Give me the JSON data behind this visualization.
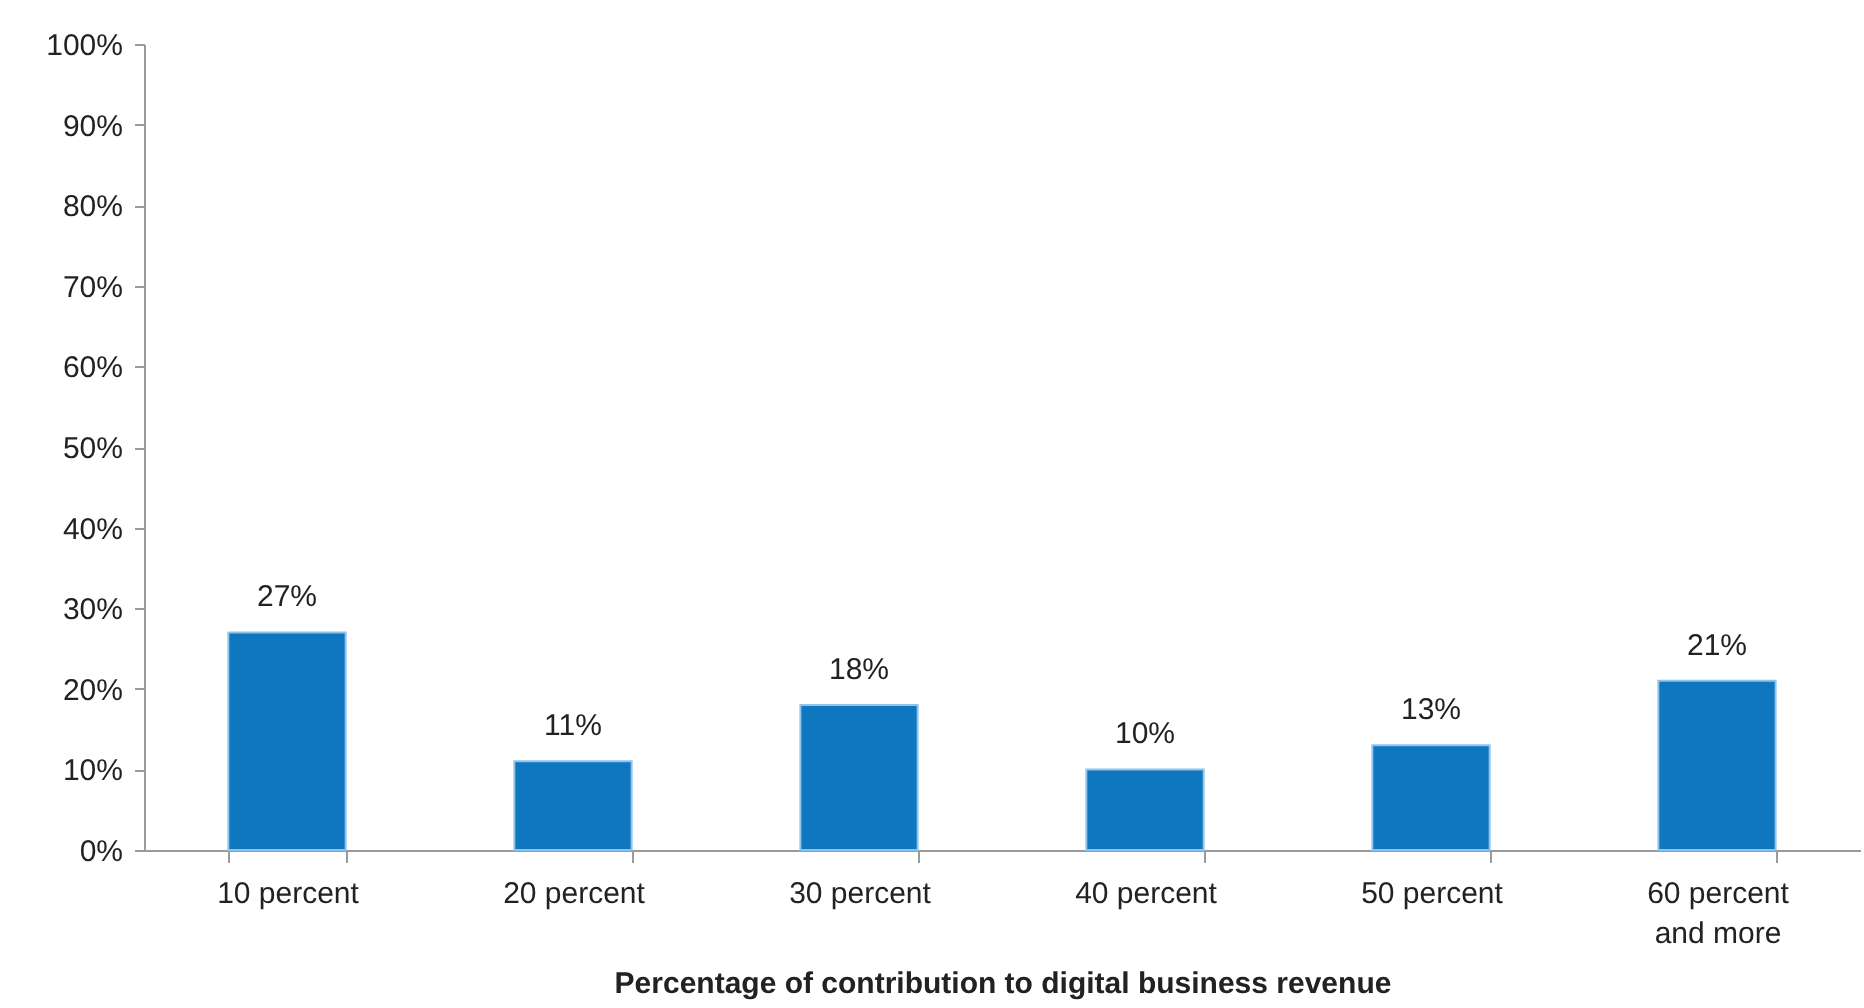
{
  "chart_data": {
    "type": "bar",
    "xlabel": "Percentage of contribution to digital business revenue",
    "categories": [
      "10 percent",
      "20 percent",
      "30 percent",
      "40 percent",
      "50 percent",
      "60 percent\nand more"
    ],
    "values": [
      27,
      11,
      18,
      10,
      13,
      21
    ],
    "color": "#0e77bf",
    "value_labels": [
      "27%",
      "11%",
      "18%",
      "10%",
      "13%",
      "21%"
    ],
    "ylim": [
      0,
      100
    ],
    "yticks": [
      {
        "value": 0,
        "label": "0%"
      },
      {
        "value": 10,
        "label": "10%"
      },
      {
        "value": 20,
        "label": "20%"
      },
      {
        "value": 30,
        "label": "30%"
      },
      {
        "value": 40,
        "label": "40%"
      },
      {
        "value": 50,
        "label": "50%"
      },
      {
        "value": 60,
        "label": "60%"
      },
      {
        "value": 70,
        "label": "70%"
      },
      {
        "value": 80,
        "label": "80%"
      },
      {
        "value": 90,
        "label": "90%"
      },
      {
        "value": 100,
        "label": "100%"
      }
    ]
  }
}
